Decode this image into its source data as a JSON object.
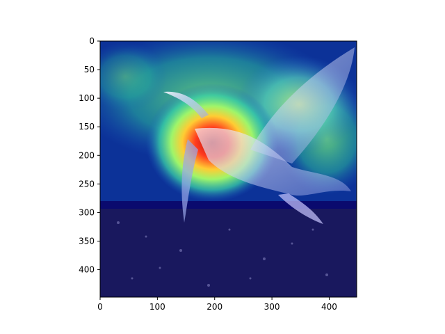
{
  "figure": {
    "image_description_name": "heatmap-overlay-bird",
    "x_axis": {
      "ticks": [
        0,
        100,
        200,
        300,
        400
      ],
      "range": [
        0,
        448
      ]
    },
    "y_axis": {
      "ticks": [
        0,
        50,
        100,
        150,
        200,
        250,
        300,
        350,
        400
      ],
      "range": [
        0,
        448
      ]
    }
  },
  "colors": {
    "background": "#ffffff",
    "axis": "#000000",
    "heat_cold": "#0a0a6e",
    "heat_warm": "#ff3b1f"
  }
}
